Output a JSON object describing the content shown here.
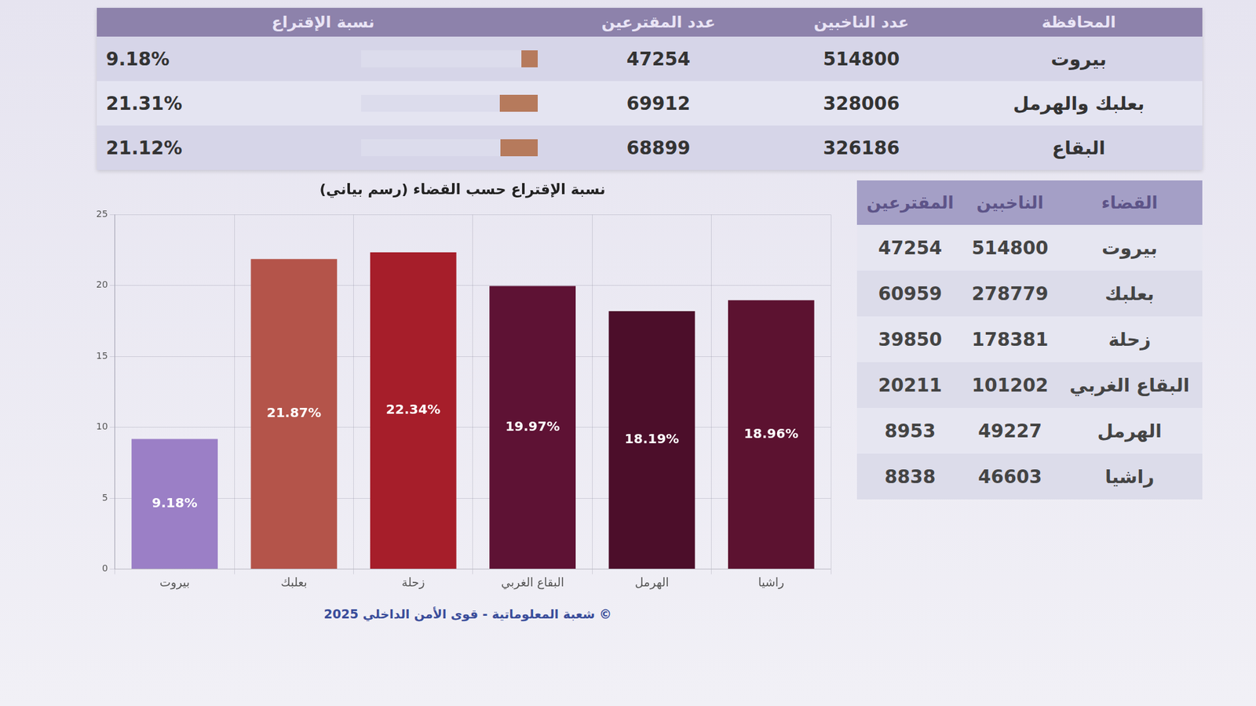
{
  "top_table": {
    "columns": [
      "المحافظة",
      "عدد الناخبين",
      "عدد المقترعين",
      "نسبة الإقتراع"
    ],
    "rows": [
      [
        "بيروت",
        514800,
        47254,
        {
          "value": 9.18,
          "label": "9.18%"
        }
      ],
      [
        "بعلبك والهرمل",
        328006,
        69912,
        {
          "value": 21.31,
          "label": "21.31%"
        }
      ],
      [
        "البقاع",
        326186,
        68899,
        {
          "value": 21.12,
          "label": "21.12%"
        }
      ]
    ]
  },
  "side_table": {
    "columns": [
      "القضاء",
      "الناخبين",
      "المقترعين"
    ],
    "rows": [
      [
        "بيروت",
        514800,
        47254
      ],
      [
        "بعلبك",
        278779,
        60959
      ],
      [
        "زحلة",
        178381,
        39850
      ],
      [
        "البقاع الغربي",
        101202,
        20211
      ],
      [
        "الهرمل",
        49227,
        8953
      ],
      [
        "راشيا",
        46603,
        8838
      ]
    ]
  },
  "chart_data": {
    "type": "bar",
    "title": "نسبة الإقتراع حسب القضاء (رسم بياني)",
    "categories": [
      "بيروت",
      "بعلبك",
      "زحلة",
      "البقاع الغربي",
      "الهرمل",
      "راشيا"
    ],
    "values": [
      9.18,
      21.87,
      22.34,
      19.97,
      18.19,
      18.96
    ],
    "value_labels": [
      "9.18%",
      "21.87%",
      "22.34%",
      "19.97%",
      "18.19%",
      "18.96%"
    ],
    "colors": [
      "#9b7fc6",
      "#b4544a",
      "#a61e2a",
      "#5e1234",
      "#4c0e2a",
      "#5c1230"
    ],
    "ylim": [
      0,
      25
    ],
    "yticks": [
      0,
      5,
      10,
      15,
      20,
      25
    ],
    "grid": true,
    "data_labels": true
  },
  "footer": "© شعبة المعلوماتية - قوى الأمن الداخلي 2025"
}
